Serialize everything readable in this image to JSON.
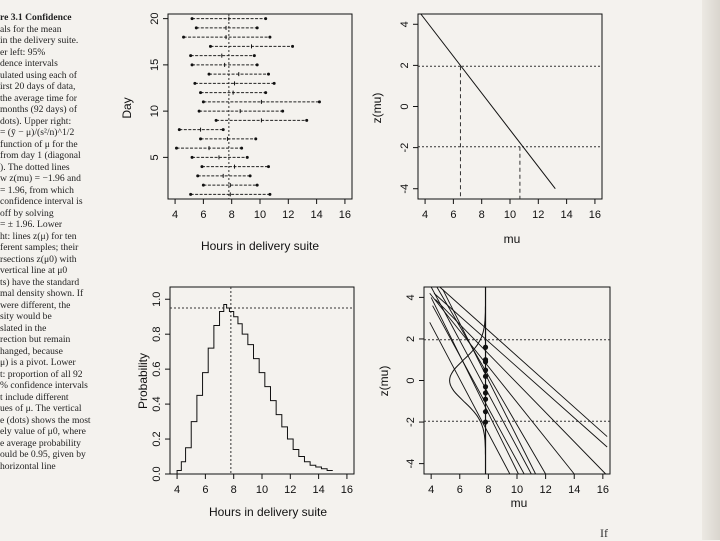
{
  "caption": {
    "lines": [
      "re 3.1  Confidence",
      "als for the mean",
      "in the delivery suite.",
      "er left: 95%",
      "dence intervals",
      "ulated using each of",
      "irst 20 days of data,",
      "the average time for",
      "months (92 days) of",
      "dots). Upper right:",
      "= (ȳ − μ)/(s²/n)^1/2",
      "function of μ for the",
      "from day 1 (diagonal",
      "). The dotted lines",
      "w z(mu) = −1.96 and",
      "= 1.96, from which",
      "confidence interval is",
      "off by solving",
      "= ± 1.96. Lower",
      "ht: lines z(μ) for ten",
      "ferent samples; their",
      "rsections z(μ0) with",
      "vertical line at μ0",
      "ts) have the standard",
      "mal density shown. If",
      "were different, the",
      "sity would be",
      "slated in the",
      "rection but remain",
      "hanged, because",
      "μ) is a pivot. Lower",
      "t: proportion of all 92",
      "% confidence intervals",
      "t include different",
      "ues of μ. The vertical",
      "e (dots) shows the most",
      "ely value of μ0, where",
      "e average probability",
      "ould be 0.95, given by",
      "horizontal line"
    ]
  },
  "footer_fragment": "If",
  "chart_data": [
    {
      "type": "interval",
      "panel": "upper-left",
      "xlabel": "Hours in delivery suite",
      "ylabel": "Day",
      "xlim": [
        3.5,
        16.5
      ],
      "ylim": [
        0.5,
        20.5
      ],
      "xticks": [
        4,
        6,
        8,
        10,
        12,
        14,
        16
      ],
      "yticks": [
        5,
        10,
        15,
        20
      ],
      "reference_x": 7.8,
      "intervals": [
        {
          "day": 1,
          "low": 5.1,
          "high": 10.7,
          "mid": 7.9
        },
        {
          "day": 2,
          "low": 6.0,
          "high": 9.8,
          "mid": 7.9
        },
        {
          "day": 3,
          "low": 5.6,
          "high": 9.3,
          "mid": 7.4
        },
        {
          "day": 4,
          "low": 5.9,
          "high": 10.6,
          "mid": 8.2
        },
        {
          "day": 5,
          "low": 5.2,
          "high": 9.1,
          "mid": 7.1
        },
        {
          "day": 6,
          "low": 4.1,
          "high": 8.7,
          "mid": 6.4
        },
        {
          "day": 7,
          "low": 5.8,
          "high": 9.7,
          "mid": 7.7
        },
        {
          "day": 8,
          "low": 4.3,
          "high": 7.4,
          "mid": 5.8
        },
        {
          "day": 9,
          "low": 6.9,
          "high": 13.3,
          "mid": 10.1
        },
        {
          "day": 10,
          "low": 5.7,
          "high": 11.6,
          "mid": 8.6
        },
        {
          "day": 11,
          "low": 6.0,
          "high": 14.2,
          "mid": 10.1
        },
        {
          "day": 12,
          "low": 5.8,
          "high": 10.4,
          "mid": 8.1
        },
        {
          "day": 13,
          "low": 5.4,
          "high": 11.0,
          "mid": 8.2
        },
        {
          "day": 14,
          "low": 6.4,
          "high": 10.6,
          "mid": 8.5
        },
        {
          "day": 15,
          "low": 5.2,
          "high": 9.8,
          "mid": 7.5
        },
        {
          "day": 16,
          "low": 5.1,
          "high": 9.6,
          "mid": 7.3
        },
        {
          "day": 17,
          "low": 6.5,
          "high": 12.3,
          "mid": 9.4
        },
        {
          "day": 18,
          "low": 4.6,
          "high": 10.7,
          "mid": 7.6
        },
        {
          "day": 19,
          "low": 5.5,
          "high": 9.8,
          "mid": 7.6
        },
        {
          "day": 20,
          "low": 5.2,
          "high": 10.4,
          "mid": 7.8
        }
      ]
    },
    {
      "type": "line",
      "panel": "upper-right",
      "xlabel": "mu",
      "ylabel": "z(mu)",
      "xlim": [
        3.5,
        16.5
      ],
      "ylim": [
        -4.5,
        4.5
      ],
      "xticks": [
        4,
        6,
        8,
        10,
        12,
        14,
        16
      ],
      "yticks": [
        -4,
        -2,
        0,
        2,
        4
      ],
      "hlines": [
        -1.96,
        1.96
      ],
      "line": {
        "x": [
          3.7,
          13.2
        ],
        "y": [
          4.6,
          -4.0
        ]
      },
      "vlines": [
        {
          "x": 6.5,
          "y_top": 1.96
        },
        {
          "x": 10.7,
          "y_top": -1.96
        }
      ]
    },
    {
      "type": "line",
      "panel": "lower-left",
      "xlabel": "Hours in delivery suite",
      "ylabel": "Probability",
      "xlim": [
        3.5,
        16.5
      ],
      "ylim": [
        0,
        1.07
      ],
      "xticks": [
        4,
        6,
        8,
        10,
        12,
        14,
        16
      ],
      "yticks": [
        0.0,
        0.2,
        0.4,
        0.6,
        0.8,
        1.0
      ],
      "hline": 0.95,
      "vline": 7.8,
      "x": [
        3.8,
        4.0,
        4.3,
        4.6,
        5.0,
        5.4,
        5.8,
        6.2,
        6.6,
        7.0,
        7.3,
        7.5,
        7.7,
        8.0,
        8.3,
        8.6,
        9.0,
        9.4,
        9.8,
        10.2,
        10.6,
        11.0,
        11.4,
        11.8,
        12.2,
        12.6,
        13.0,
        13.4,
        13.8,
        14.2,
        14.6,
        15.0
      ],
      "y": [
        0.0,
        0.02,
        0.07,
        0.15,
        0.3,
        0.45,
        0.58,
        0.72,
        0.85,
        0.93,
        0.97,
        0.95,
        0.93,
        0.9,
        0.86,
        0.8,
        0.74,
        0.66,
        0.58,
        0.5,
        0.42,
        0.34,
        0.27,
        0.2,
        0.14,
        0.1,
        0.07,
        0.05,
        0.04,
        0.03,
        0.02,
        0.02
      ]
    },
    {
      "type": "line",
      "panel": "lower-right",
      "xlabel": "mu",
      "ylabel": "z(mu)",
      "xlim": [
        3.5,
        16.5
      ],
      "ylim": [
        -4.5,
        4.5
      ],
      "xticks": [
        4,
        6,
        8,
        10,
        12,
        14,
        16
      ],
      "yticks": [
        -4,
        -2,
        0,
        2,
        4
      ],
      "hlines": [
        -1.96,
        1.96
      ],
      "vline": 7.8,
      "lines": [
        {
          "x": [
            4.0,
            11.0
          ],
          "y": [
            4.5,
            -4.5
          ]
        },
        {
          "x": [
            4.4,
            12.0
          ],
          "y": [
            4.5,
            -4.5
          ]
        },
        {
          "x": [
            4.2,
            16.3
          ],
          "y": [
            4.2,
            -3.2
          ]
        },
        {
          "x": [
            4.6,
            16.3
          ],
          "y": [
            4.5,
            -2.7
          ]
        },
        {
          "x": [
            4.0,
            10.1
          ],
          "y": [
            4.0,
            -4.5
          ]
        },
        {
          "x": [
            3.9,
            9.5
          ],
          "y": [
            2.8,
            -4.5
          ]
        },
        {
          "x": [
            3.9,
            14.0
          ],
          "y": [
            4.2,
            -4.5
          ]
        },
        {
          "x": [
            4.1,
            10.5
          ],
          "y": [
            3.6,
            -4.5
          ]
        },
        {
          "x": [
            4.3,
            16.2
          ],
          "y": [
            3.9,
            -4.5
          ]
        },
        {
          "x": [
            4.8,
            11.3
          ],
          "y": [
            4.4,
            -4.5
          ]
        }
      ],
      "dots": [
        1.6,
        1.0,
        0.5,
        0.2,
        -0.3,
        -0.9,
        -1.5,
        -2.0,
        -0.6,
        0.9
      ]
    }
  ]
}
